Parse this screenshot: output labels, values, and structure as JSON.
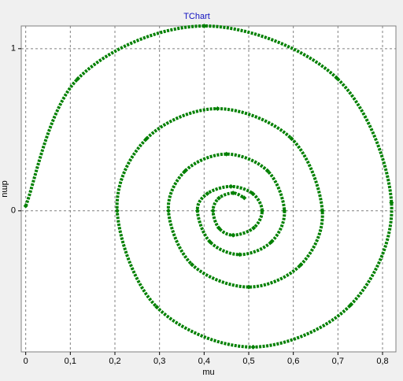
{
  "chart_data": {
    "type": "line",
    "title": "TChart",
    "x_label": "mu",
    "y_label": "dmu",
    "x": [
      0.0,
      0.117,
      0.4,
      0.697,
      0.82,
      0.729,
      0.51,
      0.294,
      0.205,
      0.271,
      0.43,
      0.596,
      0.665,
      0.617,
      0.5,
      0.373,
      0.32,
      0.358,
      0.45,
      0.542,
      0.58,
      0.551,
      0.48,
      0.413,
      0.385,
      0.407,
      0.46,
      0.509,
      0.53,
      0.511,
      0.465,
      0.433,
      0.42,
      0.433,
      0.465,
      0.49
    ],
    "series": [
      {
        "name": "dmu",
        "color": "#008000",
        "values": [
          0.03,
          0.815,
          1.14,
          0.82,
          0.05,
          -0.579,
          -0.84,
          -0.594,
          0.0,
          0.445,
          0.63,
          0.445,
          0.0,
          -0.332,
          -0.47,
          -0.332,
          0.0,
          0.247,
          0.35,
          0.247,
          0.0,
          -0.191,
          -0.27,
          -0.191,
          0.0,
          0.106,
          0.15,
          0.106,
          0.0,
          -0.106,
          -0.15,
          -0.106,
          0.0,
          0.078,
          0.11,
          0.08
        ]
      }
    ],
    "xlim": [
      -0.01,
      0.83
    ],
    "ylim": [
      -0.87,
      1.14
    ],
    "xticks": [
      0,
      {
        "value": 0.1,
        "label": "0,1"
      },
      {
        "value": 0.2,
        "label": "0,2"
      },
      {
        "value": 0.3,
        "label": "0,3"
      },
      {
        "value": 0.4,
        "label": "0,4"
      },
      {
        "value": 0.5,
        "label": "0,5"
      },
      {
        "value": 0.6,
        "label": "0,6"
      },
      {
        "value": 0.7,
        "label": "0,7"
      },
      {
        "value": 0.8,
        "label": "0,8"
      }
    ],
    "yticks": [
      0,
      1
    ],
    "grid": true
  }
}
